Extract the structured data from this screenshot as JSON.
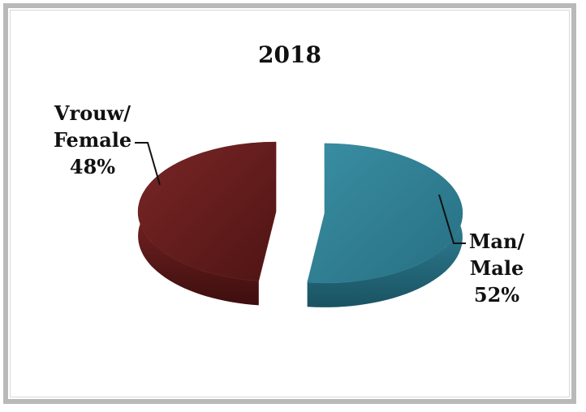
{
  "chart_data": {
    "type": "pie",
    "title": "2018",
    "categories": [
      "Vrouw/ Female",
      "Man/ Male"
    ],
    "values": [
      48,
      52
    ],
    "unit": "%",
    "labels": [
      {
        "lines": [
          "Vrouw/",
          "Female"
        ],
        "percent": "48%"
      },
      {
        "lines": [
          "Man/",
          "Male"
        ],
        "percent": "52%"
      }
    ],
    "colors": [
      "#6b1e1e",
      "#2f7f93"
    ],
    "style": "3d-exploded",
    "legend": "none"
  }
}
